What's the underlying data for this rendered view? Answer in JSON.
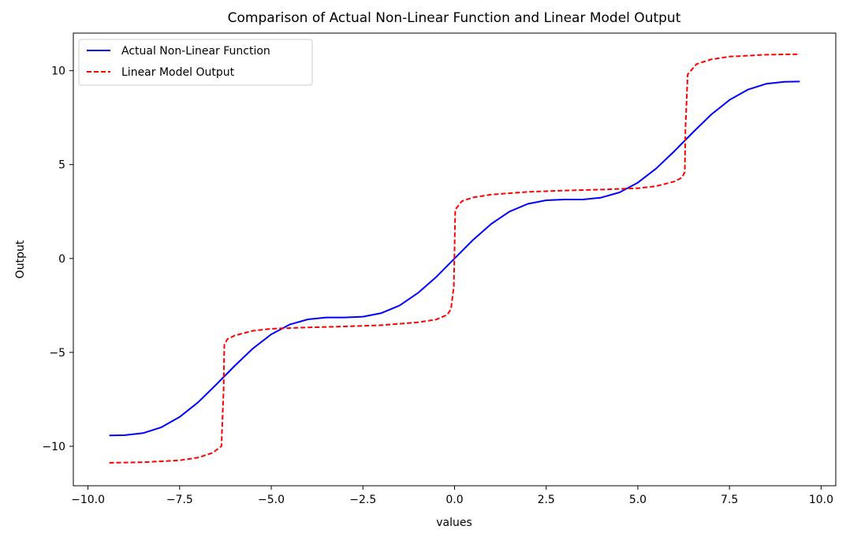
{
  "chart_data": {
    "type": "line",
    "title": "Comparison of Actual Non-Linear Function and Linear Model Output",
    "xlabel": "values",
    "ylabel": "Output",
    "xlim": [
      -10.4,
      10.4
    ],
    "ylim": [
      -12.1,
      12.0
    ],
    "xticks": [
      -10.0,
      -7.5,
      -5.0,
      -2.5,
      0.0,
      2.5,
      5.0,
      7.5,
      10.0
    ],
    "xtick_labels": [
      "−10.0",
      "−7.5",
      "−5.0",
      "−2.5",
      "0.0",
      "2.5",
      "5.0",
      "7.5",
      "10.0"
    ],
    "yticks": [
      -10,
      -5,
      0,
      5,
      10
    ],
    "ytick_labels": [
      "−10",
      "−5",
      "0",
      "5",
      "10"
    ],
    "grid": false,
    "legend_position": "top-left",
    "series": [
      {
        "name": "Actual Non-Linear Function",
        "color": "#0000ff",
        "style": "solid",
        "x": [
          -9.42,
          -9.0,
          -8.5,
          -8.0,
          -7.5,
          -7.0,
          -6.5,
          -6.0,
          -5.5,
          -5.0,
          -4.5,
          -4.0,
          -3.5,
          -3.0,
          -2.5,
          -2.0,
          -1.5,
          -1.0,
          -0.5,
          0.0,
          0.5,
          1.0,
          1.5,
          2.0,
          2.5,
          3.0,
          3.5,
          4.0,
          4.5,
          5.0,
          5.5,
          6.0,
          6.5,
          7.0,
          7.5,
          8.0,
          8.5,
          9.0,
          9.42
        ],
        "y": [
          -9.42,
          -9.41,
          -9.3,
          -8.99,
          -8.44,
          -7.66,
          -6.71,
          -5.72,
          -4.79,
          -4.04,
          -3.52,
          -3.24,
          -3.14,
          -3.14,
          -3.1,
          -2.91,
          -2.5,
          -1.84,
          -0.98,
          0.0,
          0.98,
          1.84,
          2.5,
          2.91,
          3.1,
          3.14,
          3.14,
          3.24,
          3.52,
          4.04,
          4.79,
          5.72,
          6.71,
          7.66,
          8.44,
          8.99,
          9.3,
          9.41,
          9.42
        ]
      },
      {
        "name": "Linear Model Output",
        "color": "#ff0000",
        "style": "dashed",
        "x": [
          -9.42,
          -8.5,
          -7.5,
          -7.0,
          -6.6,
          -6.36,
          -6.3,
          -6.28,
          -6.2,
          -6.0,
          -5.5,
          -5.0,
          -4.0,
          -3.0,
          -2.0,
          -1.0,
          -0.5,
          -0.2,
          -0.1,
          -0.02,
          0.02,
          0.1,
          0.2,
          0.5,
          1.0,
          2.0,
          3.0,
          4.0,
          5.0,
          5.5,
          6.0,
          6.2,
          6.28,
          6.3,
          6.36,
          6.6,
          7.0,
          7.5,
          8.5,
          9.42
        ],
        "y": [
          -10.88,
          -10.85,
          -10.75,
          -10.6,
          -10.35,
          -10.0,
          -7.0,
          -4.6,
          -4.3,
          -4.1,
          -3.85,
          -3.74,
          -3.67,
          -3.62,
          -3.55,
          -3.4,
          -3.25,
          -3.0,
          -2.7,
          -1.5,
          2.6,
          2.8,
          3.05,
          3.25,
          3.4,
          3.55,
          3.62,
          3.67,
          3.74,
          3.85,
          4.1,
          4.3,
          4.6,
          7.0,
          9.8,
          10.35,
          10.6,
          10.75,
          10.85,
          10.88
        ]
      }
    ]
  }
}
